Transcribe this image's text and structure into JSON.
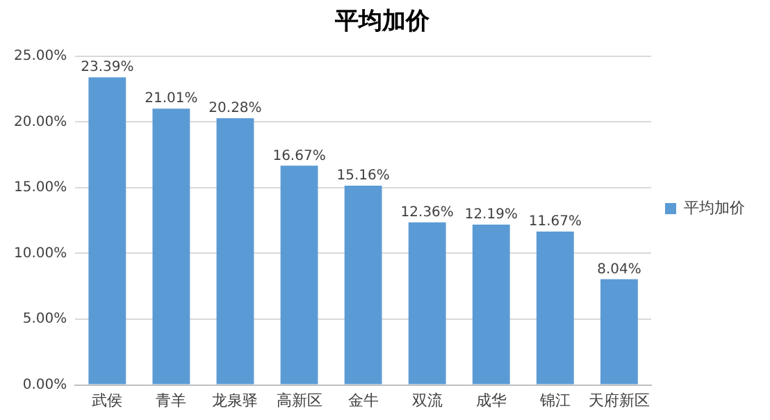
{
  "chart_data": {
    "type": "bar",
    "title": "平均加价",
    "categories": [
      "武侯",
      "青羊",
      "龙泉驿",
      "高新区",
      "金牛",
      "双流",
      "成华",
      "锦江",
      "天府新区"
    ],
    "series": [
      {
        "name": "平均加价",
        "color": "#5b9bd5",
        "values": [
          23.39,
          21.01,
          20.28,
          16.67,
          15.16,
          12.36,
          12.19,
          11.67,
          8.04
        ],
        "value_labels": [
          "23.39%",
          "21.01%",
          "20.28%",
          "16.67%",
          "15.16%",
          "12.36%",
          "12.19%",
          "11.67%",
          "8.04%"
        ]
      }
    ],
    "ylim": [
      0,
      25
    ],
    "yticks": [
      {
        "value": 0,
        "label": "0.00%"
      },
      {
        "value": 5,
        "label": "5.00%"
      },
      {
        "value": 10,
        "label": "10.00%"
      },
      {
        "value": 15,
        "label": "15.00%"
      },
      {
        "value": 20,
        "label": "20.00%"
      },
      {
        "value": 25,
        "label": "25.00%"
      }
    ],
    "grid": "y",
    "legend": "right"
  }
}
